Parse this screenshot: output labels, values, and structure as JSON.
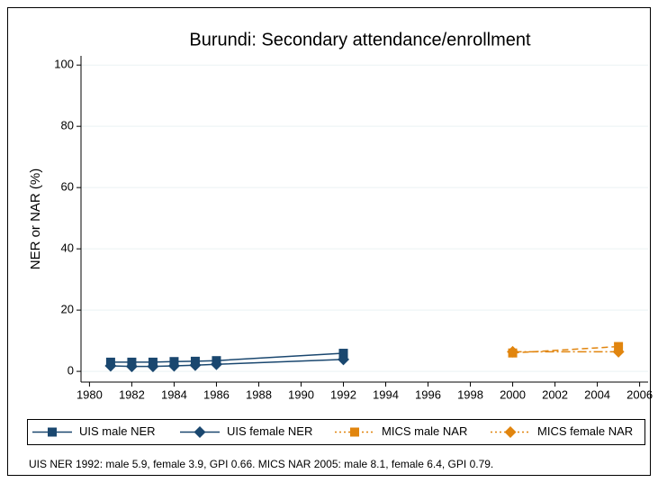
{
  "chart_data": {
    "type": "line",
    "title": "Burundi: Secondary attendance/enrollment",
    "y_label": "NER or NAR (%)",
    "note": "UIS NER 1992: male 5.9, female 3.9, GPI 0.66. MICS NAR 2005: male 8.1, female 6.4, GPI 0.79.",
    "xlim": [
      1979.6,
      2006.4
    ],
    "xticks": [
      1980,
      1982,
      1984,
      1986,
      1988,
      1990,
      1992,
      1994,
      1996,
      1998,
      2000,
      2002,
      2004,
      2006
    ],
    "ylim": [
      -3.5,
      103
    ],
    "yticks": [
      0,
      20,
      40,
      60,
      80,
      100
    ],
    "grid": true,
    "legend": "bottom",
    "series": [
      {
        "name": "UIS male NER",
        "color": "#1a476f",
        "marker": "square",
        "dash": "solid",
        "x": [
          1981,
          1982,
          1983,
          1984,
          1985,
          1986,
          1992
        ],
        "values": [
          3.0,
          3.0,
          3.0,
          3.2,
          3.3,
          3.5,
          5.9
        ]
      },
      {
        "name": "UIS female NER",
        "color": "#1a476f",
        "marker": "diamond",
        "dash": "solid",
        "x": [
          1981,
          1982,
          1983,
          1984,
          1985,
          1986,
          1992
        ],
        "values": [
          1.8,
          1.6,
          1.6,
          1.8,
          2.0,
          2.3,
          3.9
        ]
      },
      {
        "name": "MICS male NAR",
        "color": "#e1850e",
        "marker": "square",
        "dash": "dash",
        "x": [
          2000,
          2005
        ],
        "values": [
          6.0,
          8.1
        ]
      },
      {
        "name": "MICS female NAR",
        "color": "#e1850e",
        "marker": "diamond",
        "dash": "dashdot",
        "x": [
          2000,
          2005
        ],
        "values": [
          6.4,
          6.4
        ]
      }
    ]
  }
}
